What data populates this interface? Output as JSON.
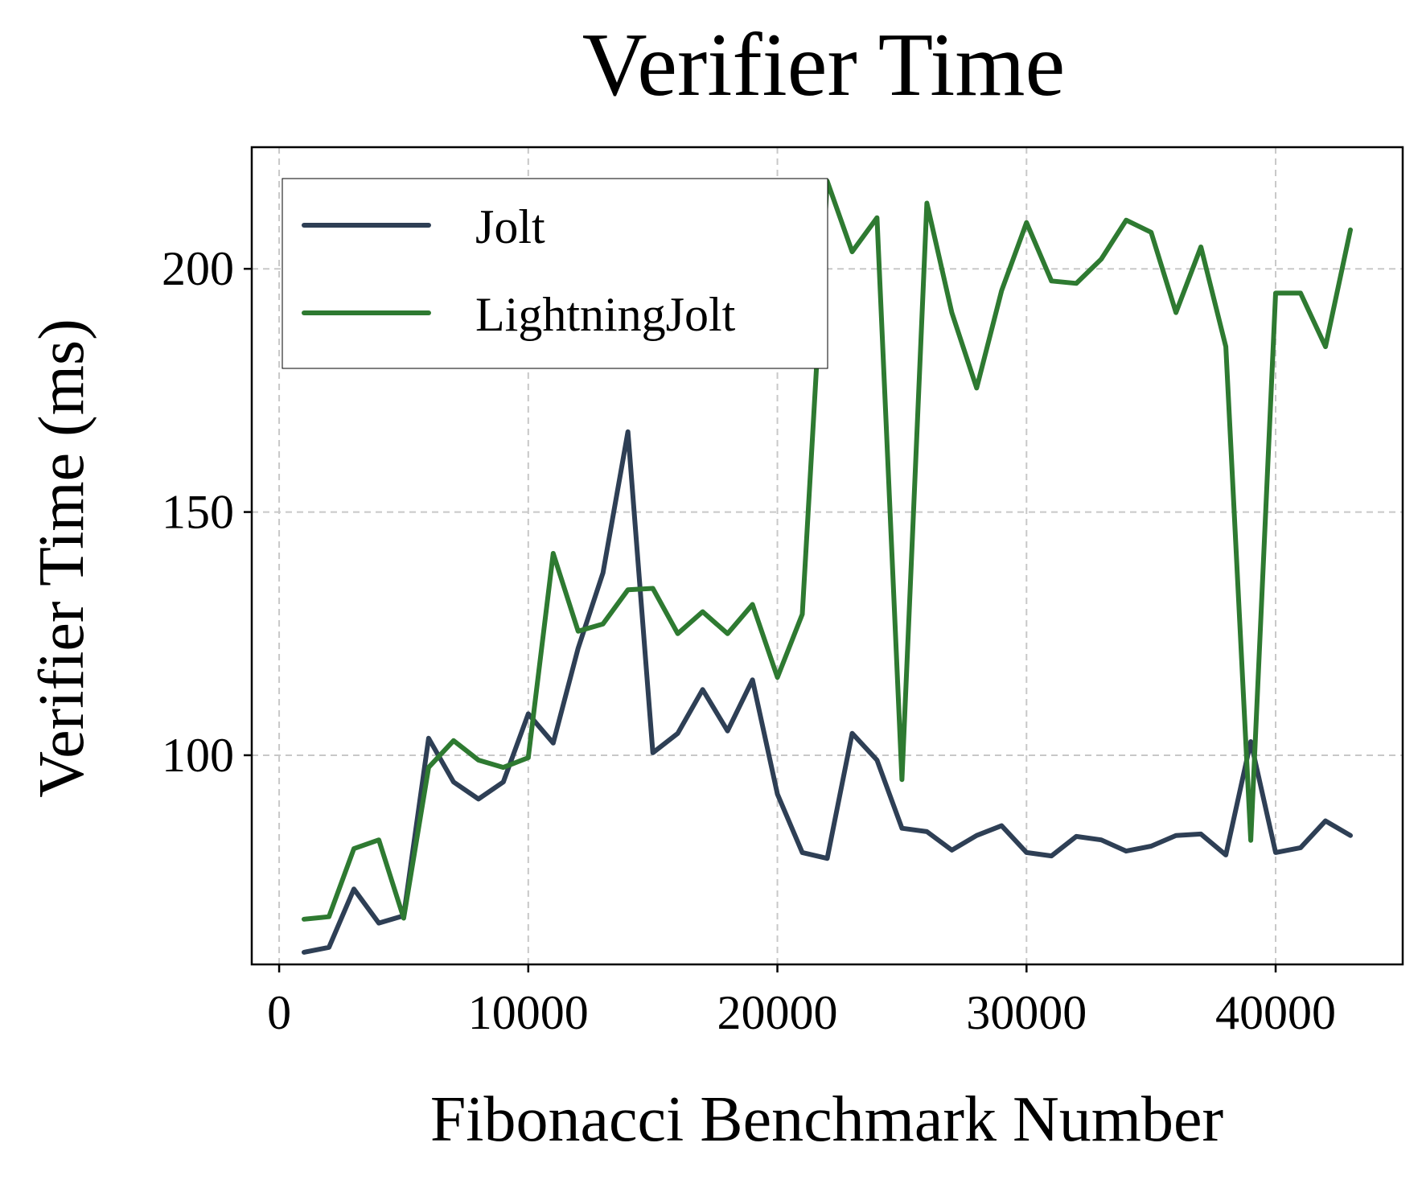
{
  "chart_data": {
    "type": "line",
    "title": "Verifier Time",
    "xlabel": "Fibonacci Benchmark Number",
    "ylabel": "Verifier Time (ms)",
    "xlim": [
      -1100,
      45100
    ],
    "ylim": [
      57,
      225
    ],
    "xticks": [
      0,
      10000,
      20000,
      30000,
      40000
    ],
    "xtick_labels": [
      "0",
      "10000",
      "20000",
      "30000",
      "40000"
    ],
    "yticks": [
      100,
      150,
      200
    ],
    "ytick_labels": [
      "100",
      "150",
      "200"
    ],
    "grid": true,
    "legend_position": "top-left",
    "x": [
      1000,
      2000,
      3000,
      4000,
      5000,
      6000,
      7000,
      8000,
      9000,
      10000,
      11000,
      12000,
      13000,
      14000,
      15000,
      16000,
      17000,
      18000,
      19000,
      20000,
      21000,
      22000,
      23000,
      24000,
      25000,
      26000,
      27000,
      28000,
      29000,
      30000,
      31000,
      32000,
      33000,
      34000,
      35000,
      36000,
      37000,
      38000,
      39000,
      40000,
      41000,
      42000,
      43000
    ],
    "series": [
      {
        "name": "Jolt",
        "color": "#2e3f55",
        "values": [
          59.5,
          60.5,
          72.5,
          65.5,
          67,
          103.5,
          94.5,
          91,
          94.5,
          108.5,
          102.5,
          122,
          137.5,
          166.5,
          100.5,
          104.5,
          113.5,
          105,
          115.5,
          92,
          80,
          78.8,
          104.5,
          99,
          85,
          84.3,
          80.5,
          83.5,
          85.5,
          80,
          79.3,
          83.3,
          82.6,
          80.3,
          81.3,
          83.5,
          83.8,
          79.5,
          102.8,
          80,
          81,
          86.5,
          83.5
        ]
      },
      {
        "name": "LightningJolt",
        "color": "#2e7a31",
        "values": [
          66.3,
          66.8,
          80.8,
          82.6,
          66.5,
          97.5,
          103,
          99,
          97.5,
          99.5,
          141.5,
          125.5,
          127,
          134,
          134.3,
          125,
          129.5,
          125,
          131,
          116,
          129,
          218,
          203.5,
          210.5,
          95,
          213.5,
          191,
          175.5,
          195.5,
          209.5,
          197.5,
          197,
          202,
          210,
          207.5,
          191,
          204.5,
          184,
          82.5,
          195,
          195,
          184,
          208
        ]
      }
    ]
  }
}
